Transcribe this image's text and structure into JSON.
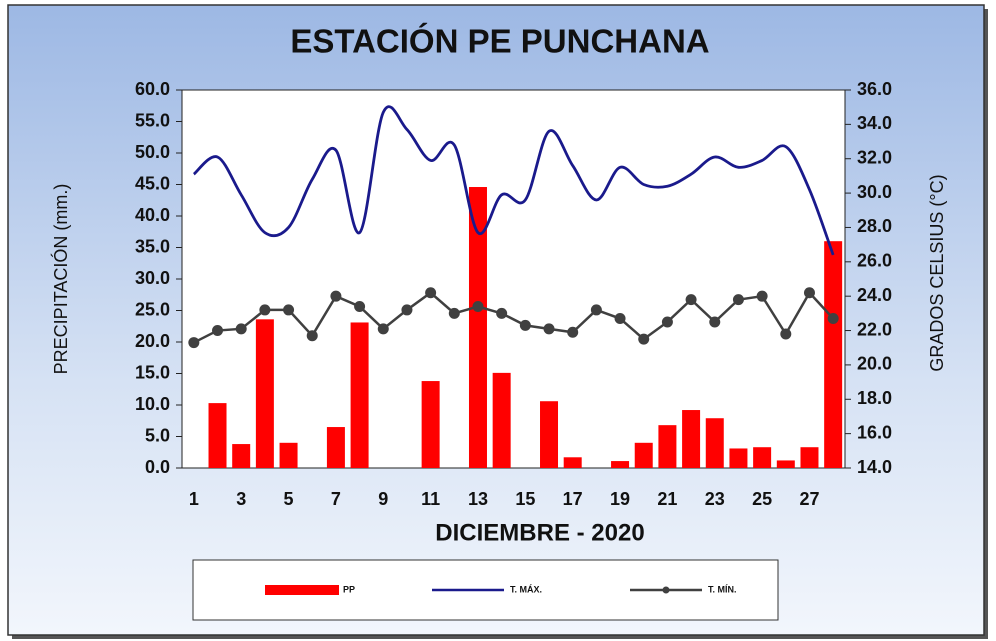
{
  "chart_data": {
    "type": "bar-line",
    "title": "ESTACIÓN PE PUNCHANA",
    "x_label": "DICIEMBRE  - 2020",
    "y_label": "PRECIPITACIÓN (mm.)",
    "y2_label": "GRADOS CELSIUS (°C)",
    "categories": [
      1,
      null,
      3,
      null,
      5,
      null,
      7,
      null,
      9,
      null,
      11,
      null,
      13,
      null,
      15,
      null,
      17,
      null,
      19,
      null,
      21,
      null,
      23,
      null,
      25,
      null,
      27,
      null
    ],
    "series": [
      {
        "name": "PP",
        "type": "bar",
        "color": "#ff0000",
        "values": [
          0,
          10.3,
          3.8,
          23.6,
          4.0,
          0,
          6.5,
          23.1,
          0,
          0,
          13.8,
          0,
          44.6,
          15.1,
          0,
          10.6,
          1.7,
          0,
          1.1,
          4.0,
          6.8,
          9.2,
          7.9,
          3.1,
          3.3,
          1.2,
          3.3,
          36.0
        ]
      },
      {
        "name": "T. MÁX.",
        "type": "line",
        "axis": "y2",
        "color": "#1a1a8c",
        "smooth": true,
        "values": [
          31.1,
          32.1,
          29.9,
          27.7,
          28.0,
          30.8,
          32.5,
          27.7,
          34.7,
          33.7,
          31.9,
          32.8,
          27.7,
          29.9,
          29.6,
          33.6,
          31.6,
          29.6,
          31.5,
          30.5,
          30.4,
          31.1,
          32.1,
          31.5,
          31.9,
          32.7,
          30.2,
          26.4
        ]
      },
      {
        "name": "T. MÍN.",
        "type": "line",
        "axis": "y2",
        "color": "#404040",
        "markers": true,
        "values": [
          21.3,
          22.0,
          22.1,
          23.2,
          23.2,
          21.7,
          24.0,
          23.4,
          22.1,
          23.2,
          24.2,
          23.0,
          23.4,
          23.0,
          22.3,
          22.1,
          21.9,
          23.2,
          22.7,
          21.5,
          22.5,
          23.8,
          22.5,
          23.8,
          24.0,
          21.8,
          24.2,
          22.7
        ]
      }
    ],
    "ylim": [
      0,
      60
    ],
    "yticks": [
      {
        "value": 0,
        "label": "0.0"
      },
      {
        "value": 5,
        "label": "5.0"
      },
      {
        "value": 10,
        "label": "10.0"
      },
      {
        "value": 15,
        "label": "15.0"
      },
      {
        "value": 20,
        "label": "20.0"
      },
      {
        "value": 25,
        "label": "25.0"
      },
      {
        "value": 30,
        "label": "30.0"
      },
      {
        "value": 35,
        "label": "35.0"
      },
      {
        "value": 40,
        "label": "40.0"
      },
      {
        "value": 45,
        "label": "45.0"
      },
      {
        "value": 50,
        "label": "50.0"
      },
      {
        "value": 55,
        "label": "55.0"
      },
      {
        "value": 60,
        "label": "60.0"
      }
    ],
    "y2lim": [
      14,
      36
    ],
    "y2ticks": [
      {
        "value": 14,
        "label": "14.0"
      },
      {
        "value": 16,
        "label": "16.0"
      },
      {
        "value": 18,
        "label": "18.0"
      },
      {
        "value": 20,
        "label": "20.0"
      },
      {
        "value": 22,
        "label": "22.0"
      },
      {
        "value": 24,
        "label": "24.0"
      },
      {
        "value": 26,
        "label": "26.0"
      },
      {
        "value": 28,
        "label": "28.0"
      },
      {
        "value": 30,
        "label": "30.0"
      },
      {
        "value": 32,
        "label": "32.0"
      },
      {
        "value": 34,
        "label": "34.0"
      },
      {
        "value": 36,
        "label": "36.0"
      }
    ],
    "legend": "bottom"
  }
}
